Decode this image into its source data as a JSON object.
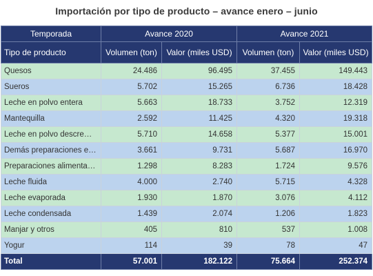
{
  "title": "Importación por tipo de producto – avance enero – junio",
  "table": {
    "header_top": {
      "first": "Temporada",
      "group_2020": "Avance 2020",
      "group_2021": "Avance 2021"
    },
    "header_sub": {
      "product": "Tipo de producto",
      "vol_2020": "Volumen (ton)",
      "val_2020": "Valor (miles USD)",
      "vol_2021": "Volumen (ton)",
      "val_2021": "Valor (miles USD)"
    },
    "rows": [
      {
        "product": "Quesos",
        "vol_2020": "24.486",
        "val_2020": "96.495",
        "vol_2021": "37.455",
        "val_2021": "149.443"
      },
      {
        "product": "Sueros",
        "vol_2020": "5.702",
        "val_2020": "15.265",
        "vol_2021": "6.736",
        "val_2021": "18.428"
      },
      {
        "product": "Leche en polvo entera",
        "vol_2020": "5.663",
        "val_2020": "18.733",
        "vol_2021": "3.752",
        "val_2021": "12.319"
      },
      {
        "product": "Mantequilla",
        "vol_2020": "2.592",
        "val_2020": "11.425",
        "vol_2021": "4.320",
        "val_2021": "19.318"
      },
      {
        "product": "Leche en polvo descrema...",
        "vol_2020": "5.710",
        "val_2020": "14.658",
        "vol_2021": "5.377",
        "val_2021": "15.001"
      },
      {
        "product": "Demás preparaciones en ...",
        "vol_2020": "3.661",
        "val_2020": "9.731",
        "vol_2021": "5.687",
        "val_2021": "16.970"
      },
      {
        "product": "Preparaciones alimentaci...",
        "vol_2020": "1.298",
        "val_2020": "8.283",
        "vol_2021": "1.724",
        "val_2021": "9.576"
      },
      {
        "product": "Leche fluida",
        "vol_2020": "4.000",
        "val_2020": "2.740",
        "vol_2021": "5.715",
        "val_2021": "4.328"
      },
      {
        "product": "Leche evaporada",
        "vol_2020": "1.930",
        "val_2020": "1.870",
        "vol_2021": "3.076",
        "val_2021": "4.112"
      },
      {
        "product": "Leche condensada",
        "vol_2020": "1.439",
        "val_2020": "2.074",
        "vol_2021": "1.206",
        "val_2021": "1.823"
      },
      {
        "product": "Manjar y otros",
        "vol_2020": "405",
        "val_2020": "810",
        "vol_2021": "537",
        "val_2021": "1.008"
      },
      {
        "product": "Yogur",
        "vol_2020": "114",
        "val_2020": "39",
        "vol_2021": "78",
        "val_2021": "47"
      }
    ],
    "total": {
      "label": "Total",
      "vol_2020": "57.001",
      "val_2020": "182.122",
      "vol_2021": "75.664",
      "val_2021": "252.374"
    }
  }
}
